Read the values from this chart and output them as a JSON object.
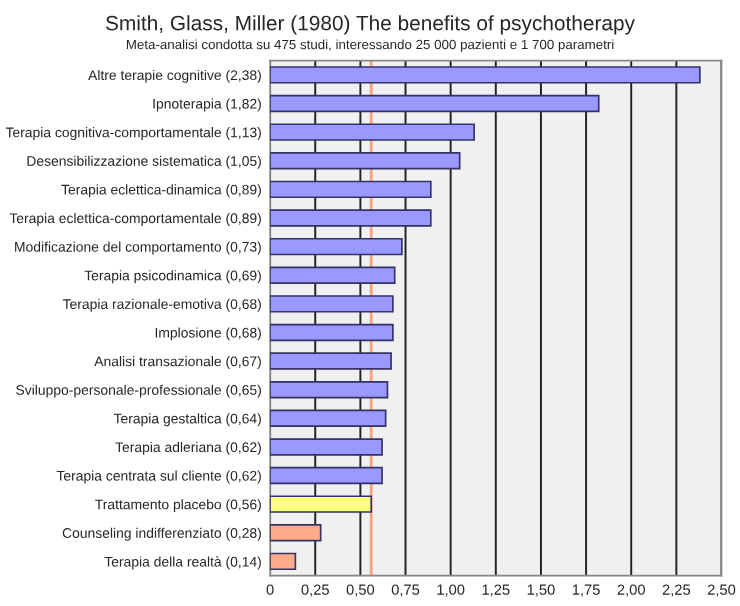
{
  "chart_data": {
    "type": "bar",
    "orientation": "horizontal",
    "title": "Smith, Glass, Miller (1980) The benefits of psychotherapy",
    "subtitle": "Meta-analisi condotta su 475 studi, interessando 25 000 pazienti e 1 700 parametri",
    "categories": [
      "Altre terapie cognitive (2,38)",
      "Ipnoterapia (1,82)",
      "Terapia cognitiva-comportamentale (1,13)",
      "Desensibilizzazione sistematica (1,05)",
      "Terapia eclettica-dinamica (0,89)",
      "Terapia eclettica-comportamentale (0,89)",
      "Modificazione del comportamento (0,73)",
      "Terapia psicodinamica (0,69)",
      "Terapia razionale-emotiva (0,68)",
      "Implosione (0,68)",
      "Analisi transazionale (0,67)",
      "Sviluppo-personale-professionale (0,65)",
      "Terapia gestaltica (0,64)",
      "Terapia adleriana (0,62)",
      "Terapia centrata sul cliente (0,62)",
      "Trattamento placebo (0,56)",
      "Counseling indifferenziato (0,28)",
      "Terapia della realtà (0,14)"
    ],
    "values": [
      2.38,
      1.82,
      1.13,
      1.05,
      0.89,
      0.89,
      0.73,
      0.69,
      0.68,
      0.68,
      0.67,
      0.65,
      0.64,
      0.62,
      0.62,
      0.56,
      0.28,
      0.14
    ],
    "colors": [
      "#9999ff",
      "#9999ff",
      "#9999ff",
      "#9999ff",
      "#9999ff",
      "#9999ff",
      "#9999ff",
      "#9999ff",
      "#9999ff",
      "#9999ff",
      "#9999ff",
      "#9999ff",
      "#9999ff",
      "#9999ff",
      "#9999ff",
      "#ffff80",
      "#ffaa88",
      "#ffaa88"
    ],
    "xlim": [
      0,
      2.5
    ],
    "xticks": [
      0,
      {
        "value": 0.25,
        "label": "0,25"
      },
      {
        "value": 0.5,
        "label": "0,50"
      },
      {
        "value": 0.75,
        "label": "0,75"
      },
      {
        "value": 1.0,
        "label": "1,00"
      },
      {
        "value": 1.25,
        "label": "1,25"
      },
      {
        "value": 1.5,
        "label": "1,50"
      },
      {
        "value": 1.75,
        "label": "1,75"
      },
      {
        "value": 2.0,
        "label": "2,00"
      },
      {
        "value": 2.25,
        "label": "2,25"
      },
      {
        "value": 2.5,
        "label": "2,50"
      }
    ],
    "grid": "x",
    "ref_lines": [
      {
        "axis": "x",
        "value": 0.56,
        "color": "#ffa07a"
      }
    ]
  }
}
